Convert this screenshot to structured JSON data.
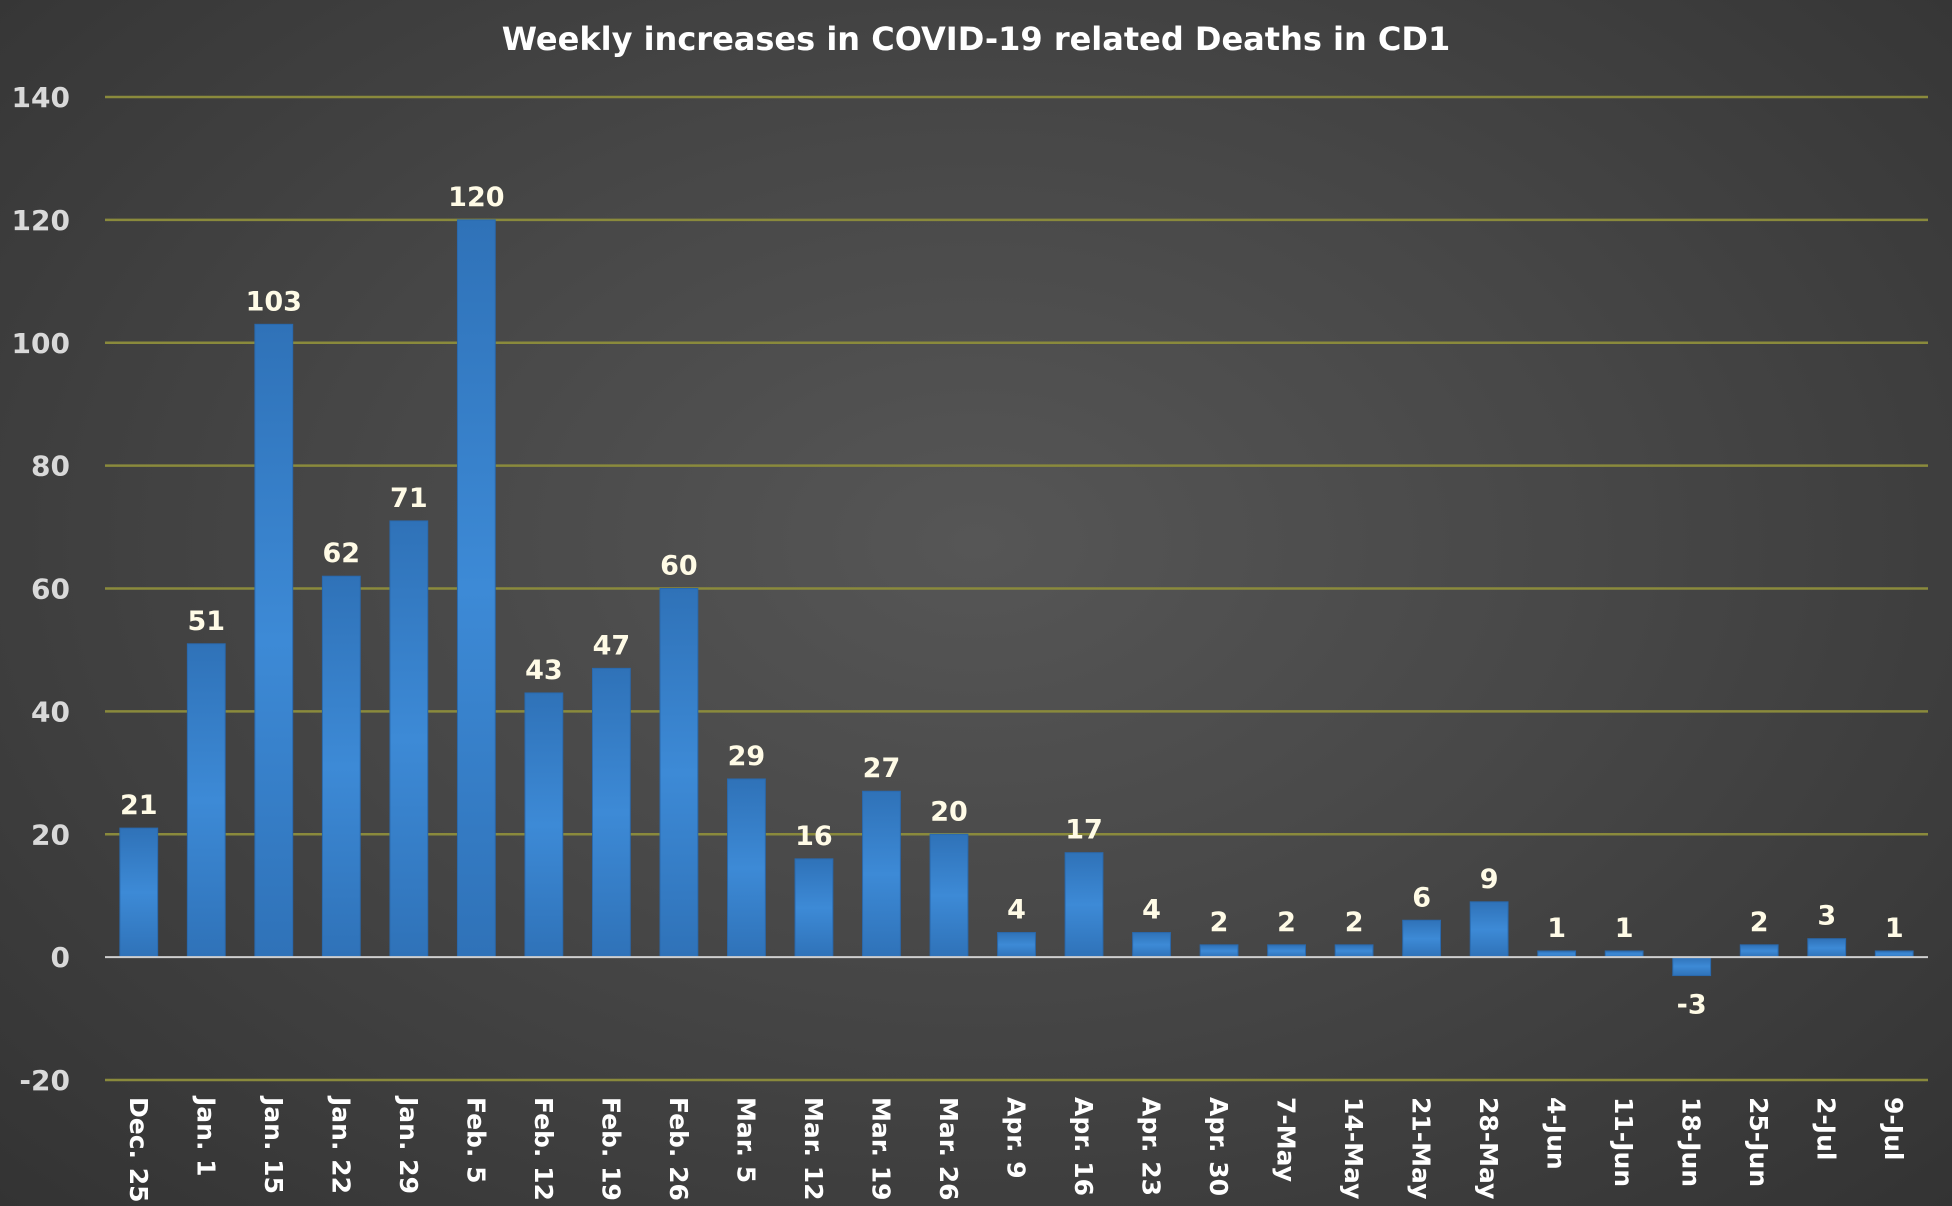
{
  "chart_data": {
    "type": "bar",
    "title": "Weekly increases in COVID-19 related Deaths in CD1",
    "xlabel": "",
    "ylabel": "",
    "ylim": [
      -20,
      140
    ],
    "yticks": [
      -20,
      0,
      20,
      40,
      60,
      80,
      100,
      120,
      140
    ],
    "grid": true,
    "legend": "none",
    "categories": [
      "Dec. 25",
      "Jan. 1",
      "Jan. 15",
      "Jan. 22",
      "Jan. 29",
      "Feb. 5",
      "Feb. 12",
      "Feb. 19",
      "Feb. 26",
      "Mar. 5",
      "Mar. 12",
      "Mar. 19",
      "Mar. 26",
      "Apr. 9",
      "Apr. 16",
      "Apr. 23",
      "Apr. 30",
      "7-May",
      "14-May",
      "21-May",
      "28-May",
      "4-Jun",
      "11-Jun",
      "18-Jun",
      "25-Jun",
      "2-Jul",
      "9-Jul"
    ],
    "values": [
      21,
      51,
      103,
      62,
      71,
      120,
      43,
      47,
      60,
      29,
      16,
      27,
      20,
      4,
      17,
      4,
      2,
      2,
      2,
      6,
      9,
      1,
      1,
      -3,
      2,
      3,
      1
    ],
    "colors": {
      "bar": "#3a82cc",
      "bar_edge": "#2a69ad",
      "gridline": "#8a8a3c",
      "zero_line": "#cfcfcf",
      "tick_label": "#d9d9d9",
      "data_label": "#fffbe6",
      "title": "#ffffff"
    }
  }
}
